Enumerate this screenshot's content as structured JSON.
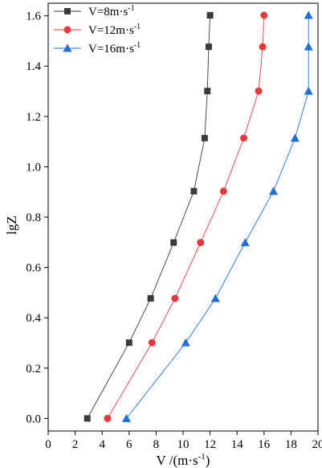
{
  "chart_data": {
    "type": "line",
    "xlabel_main": "V /(m·s",
    "xlabel_sup": "-1",
    "xlabel_tail": ")",
    "ylabel": "lgZ",
    "xlim": [
      0,
      20
    ],
    "ylim": [
      -0.05,
      1.65
    ],
    "xticks": [
      "0",
      "2",
      "4",
      "6",
      "8",
      "10",
      "12",
      "14",
      "16",
      "18",
      "20"
    ],
    "yticks": [
      "0.0",
      "0.2",
      "0.4",
      "0.6",
      "0.8",
      "1.0",
      "1.2",
      "1.4",
      "1.6"
    ],
    "legend_position": "top-left",
    "series": [
      {
        "name": "V=8m·s",
        "name_sup": "-1",
        "marker": "square",
        "color": "#3a3a3a",
        "x": [
          2.9,
          6.0,
          7.6,
          9.3,
          10.8,
          11.6,
          11.8,
          11.9,
          12.0
        ],
        "y": [
          0.0,
          0.301,
          0.477,
          0.699,
          0.903,
          1.114,
          1.301,
          1.477,
          1.602
        ]
      },
      {
        "name": "V=12m·s",
        "name_sup": "-1",
        "marker": "circle",
        "color": "#e8383d",
        "x": [
          4.4,
          7.7,
          9.4,
          11.3,
          13.0,
          14.5,
          15.6,
          15.9,
          16.0
        ],
        "y": [
          0.0,
          0.301,
          0.477,
          0.699,
          0.903,
          1.114,
          1.301,
          1.477,
          1.602
        ]
      },
      {
        "name": "V=16m·s",
        "name_sup": "-1",
        "marker": "triangle",
        "color": "#1f6fd6",
        "x": [
          5.8,
          10.2,
          12.4,
          14.6,
          16.7,
          18.3,
          19.3,
          19.3,
          19.3
        ],
        "y": [
          0.0,
          0.301,
          0.477,
          0.699,
          0.903,
          1.114,
          1.301,
          1.477,
          1.602
        ]
      }
    ]
  }
}
